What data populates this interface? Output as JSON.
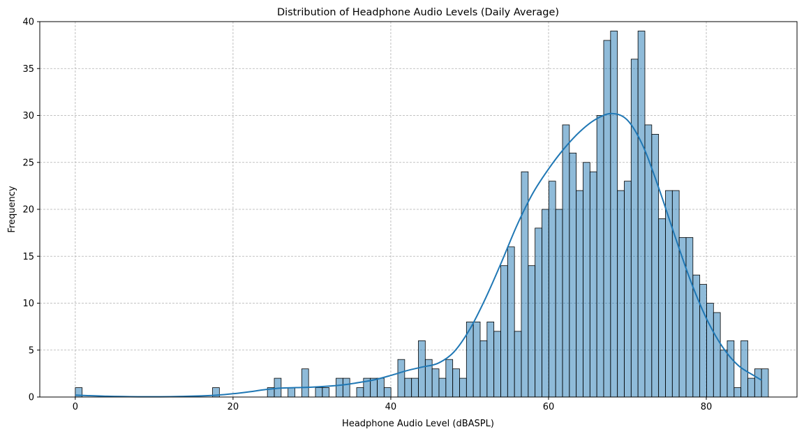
{
  "chart_data": {
    "type": "bar",
    "title": "Distribution of Headphone Audio Levels (Daily Average)",
    "xlabel": "Headphone Audio Level (dBASPL)",
    "ylabel": "Frequency",
    "xlim": [
      -4.5,
      91.5
    ],
    "ylim": [
      0,
      40
    ],
    "xticks": [
      0,
      20,
      40,
      60,
      80
    ],
    "yticks": [
      0,
      5,
      10,
      15,
      20,
      25,
      30,
      35,
      40
    ],
    "grid": true,
    "bin_start": 0,
    "bin_width": 0.87,
    "series": [
      {
        "values": [
          1,
          0,
          0,
          0,
          0,
          0,
          0,
          0,
          0,
          0,
          0,
          0,
          0,
          0,
          0,
          0,
          0,
          0,
          0,
          0,
          1,
          0,
          0,
          0,
          0,
          0,
          0,
          0,
          1,
          2,
          0,
          1,
          0,
          3,
          0,
          1,
          1,
          0,
          2,
          2,
          0,
          1,
          2,
          2,
          2,
          1,
          0,
          4,
          2,
          2,
          6,
          4,
          3,
          2,
          4,
          3,
          2,
          8,
          8,
          6,
          8,
          7,
          14,
          16,
          7,
          24,
          14,
          18,
          20,
          23,
          20,
          29,
          26,
          22,
          25,
          24,
          30,
          38,
          39,
          22,
          23,
          36,
          39,
          29,
          28,
          19,
          22,
          22,
          17,
          17,
          13,
          12,
          10,
          9,
          5,
          6,
          1,
          6,
          2,
          3,
          3
        ],
        "color": "#1f77b4"
      }
    ],
    "kde": {
      "x": [
        0,
        4,
        8,
        12,
        16,
        18,
        20,
        22,
        24,
        26,
        28,
        30,
        32,
        34,
        36,
        38,
        40,
        42,
        44,
        46,
        48,
        50,
        52,
        54,
        56,
        58,
        60,
        62,
        64,
        66,
        68,
        70,
        72,
        74,
        76,
        78,
        80,
        82,
        84,
        86,
        87
      ],
      "y": [
        0.2,
        0.08,
        0.03,
        0.04,
        0.12,
        0.2,
        0.35,
        0.55,
        0.78,
        0.95,
        1.0,
        1.05,
        1.15,
        1.3,
        1.55,
        1.85,
        2.3,
        2.8,
        3.2,
        3.6,
        4.8,
        7.2,
        10.5,
        14.3,
        18.3,
        21.7,
        24.3,
        26.5,
        28.3,
        29.6,
        30.2,
        29.5,
        26.7,
        22.2,
        17.2,
        12.4,
        8.4,
        5.4,
        3.4,
        2.3,
        1.8
      ]
    }
  }
}
